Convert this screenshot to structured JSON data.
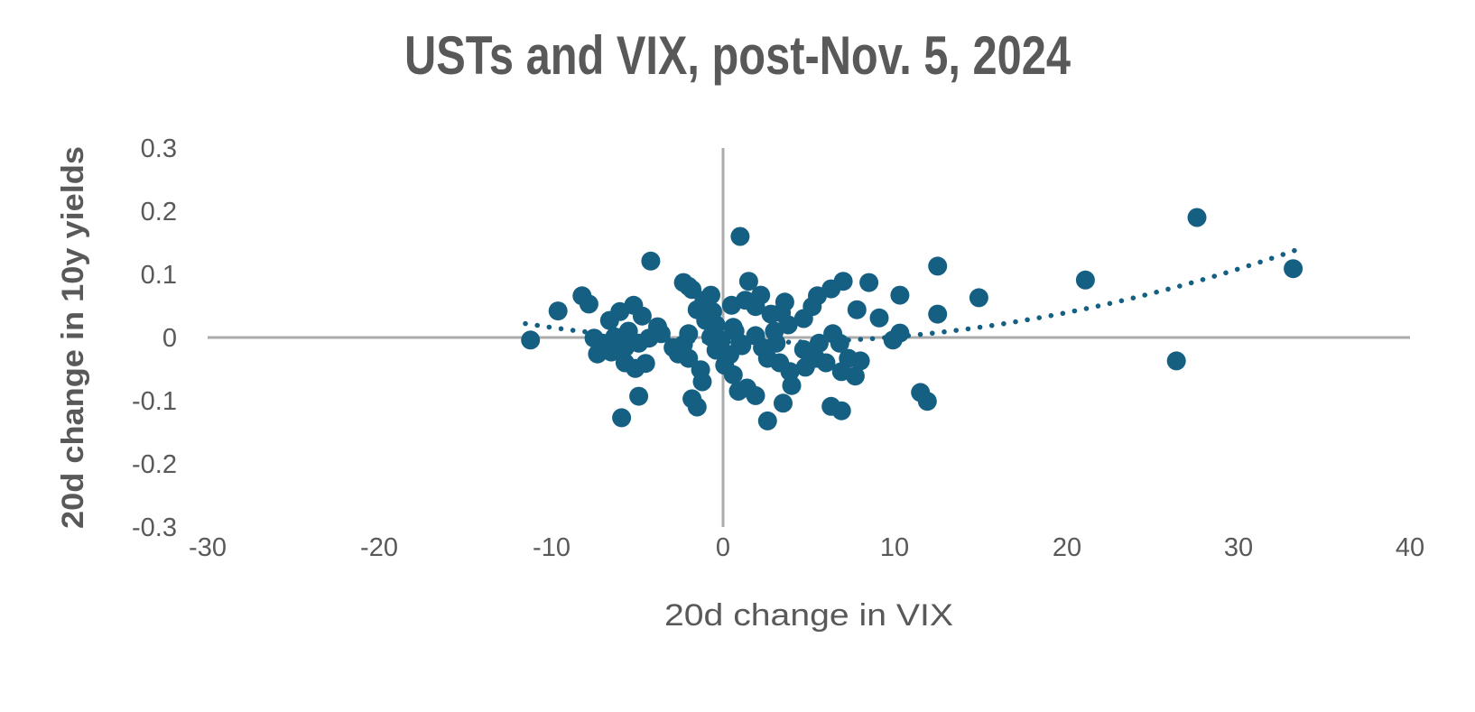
{
  "page": {
    "background": "#ffffff"
  },
  "chart_data": {
    "type": "scatter",
    "title": "USTs and VIX, post-Nov. 5, 2024",
    "xlabel": "20d change in VIX",
    "ylabel": "20d change in 10y yields",
    "xlim": [
      -30,
      40
    ],
    "ylim": [
      -0.3,
      0.3
    ],
    "x_tick_labels": [
      "-30",
      "-20",
      "-10",
      "0",
      "10",
      "20",
      "30",
      "40"
    ],
    "y_tick_labels": [
      "0.3",
      "0.2",
      "0.1",
      "0",
      "-0.1",
      "-0.2",
      "-0.3"
    ],
    "grid": false,
    "legend": false,
    "colors": {
      "marker": "#156082",
      "trendline": "#156082",
      "axis_line": "#ABABAB",
      "text": "#595959"
    },
    "marker_radius_px": 10.5,
    "series": [
      {
        "name": "20d change in VIX vs 20d change in 10y yields",
        "points": [
          [
            -11.2,
            -0.004
          ],
          [
            -9.6,
            0.042
          ],
          [
            -8.2,
            0.066
          ],
          [
            -7.8,
            0.053
          ],
          [
            -7.5,
            -0.001
          ],
          [
            -7.3,
            -0.026
          ],
          [
            -7.0,
            -0.009
          ],
          [
            -6.6,
            0.027
          ],
          [
            -6.5,
            -0.023
          ],
          [
            -6.3,
            0.001
          ],
          [
            -6.0,
            0.041
          ],
          [
            -5.9,
            -0.127
          ],
          [
            -5.7,
            -0.016
          ],
          [
            -5.7,
            -0.04
          ],
          [
            -5.5,
            0.01
          ],
          [
            -5.2,
            0.051
          ],
          [
            -5.1,
            -0.049
          ],
          [
            -4.9,
            -0.009
          ],
          [
            -4.9,
            -0.093
          ],
          [
            -4.7,
            0.034
          ],
          [
            -4.5,
            -0.041
          ],
          [
            -4.3,
            -0.001
          ],
          [
            -4.2,
            0.121
          ],
          [
            -3.8,
            0.017
          ],
          [
            -3.6,
            0.006
          ],
          [
            -2.9,
            -0.016
          ],
          [
            -2.6,
            -0.026
          ],
          [
            -2.3,
            0.087
          ],
          [
            -2.3,
            -0.011
          ],
          [
            -2.0,
            0.081
          ],
          [
            -2.0,
            0.006
          ],
          [
            -2.0,
            -0.033
          ],
          [
            -1.8,
            0.076
          ],
          [
            -1.8,
            -0.097
          ],
          [
            -1.5,
            0.044
          ],
          [
            -1.5,
            -0.11
          ],
          [
            -1.3,
            -0.051
          ],
          [
            -1.2,
            -0.07
          ],
          [
            -1.1,
            0.059
          ],
          [
            -1.0,
            0.027
          ],
          [
            -0.7,
            0.067
          ],
          [
            -0.7,
            0.001
          ],
          [
            -0.6,
            0.041
          ],
          [
            -0.4,
            0.02
          ],
          [
            -0.4,
            -0.02
          ],
          [
            -0.1,
            -0.004
          ],
          [
            0.1,
            -0.044
          ],
          [
            0.4,
            -0.027
          ],
          [
            0.5,
            0.051
          ],
          [
            0.6,
            0.016
          ],
          [
            0.6,
            -0.059
          ],
          [
            0.7,
            0.01
          ],
          [
            0.9,
            -0.085
          ],
          [
            1.0,
            0.16
          ],
          [
            1.0,
            -0.009
          ],
          [
            1.1,
            -0.013
          ],
          [
            1.3,
            0.059
          ],
          [
            1.4,
            -0.08
          ],
          [
            1.5,
            0.089
          ],
          [
            1.9,
            0.049
          ],
          [
            1.9,
            0.003
          ],
          [
            1.9,
            -0.092
          ],
          [
            2.2,
            0.067
          ],
          [
            2.3,
            -0.016
          ],
          [
            2.6,
            -0.033
          ],
          [
            2.6,
            -0.132
          ],
          [
            2.8,
            0.037
          ],
          [
            3.0,
            0.01
          ],
          [
            3.1,
            -0.009
          ],
          [
            3.3,
            -0.04
          ],
          [
            3.4,
            0.039
          ],
          [
            3.5,
            -0.104
          ],
          [
            3.6,
            0.056
          ],
          [
            3.8,
            0.02
          ],
          [
            3.9,
            -0.054
          ],
          [
            4.0,
            -0.076
          ],
          [
            4.7,
            0.03
          ],
          [
            4.7,
            -0.019
          ],
          [
            4.8,
            -0.047
          ],
          [
            5.2,
            0.049
          ],
          [
            5.4,
            -0.033
          ],
          [
            5.5,
            0.066
          ],
          [
            5.6,
            -0.009
          ],
          [
            6.0,
            -0.04
          ],
          [
            6.3,
            0.077
          ],
          [
            6.3,
            -0.109
          ],
          [
            6.4,
            0.006
          ],
          [
            6.8,
            -0.009
          ],
          [
            6.9,
            -0.054
          ],
          [
            6.9,
            -0.116
          ],
          [
            7.0,
            0.089
          ],
          [
            7.3,
            -0.033
          ],
          [
            7.7,
            -0.061
          ],
          [
            7.8,
            0.044
          ],
          [
            8.0,
            -0.037
          ],
          [
            8.5,
            0.087
          ],
          [
            9.1,
            0.031
          ],
          [
            9.9,
            -0.004
          ],
          [
            10.3,
            0.067
          ],
          [
            10.3,
            0.007
          ],
          [
            11.5,
            -0.087
          ],
          [
            11.9,
            -0.101
          ],
          [
            12.5,
            0.113
          ],
          [
            12.5,
            0.037
          ],
          [
            14.9,
            0.063
          ],
          [
            21.1,
            0.091
          ],
          [
            26.4,
            -0.037
          ],
          [
            27.6,
            0.19
          ],
          [
            33.2,
            0.109
          ]
        ]
      }
    ],
    "trendline": {
      "type": "polynomial",
      "order": 2,
      "coefficients": {
        "x2": 0.000153,
        "x1": -0.00075,
        "x0": -0.0068
      },
      "x_range": [
        -11.5,
        33.5
      ],
      "style": "dotted"
    }
  }
}
